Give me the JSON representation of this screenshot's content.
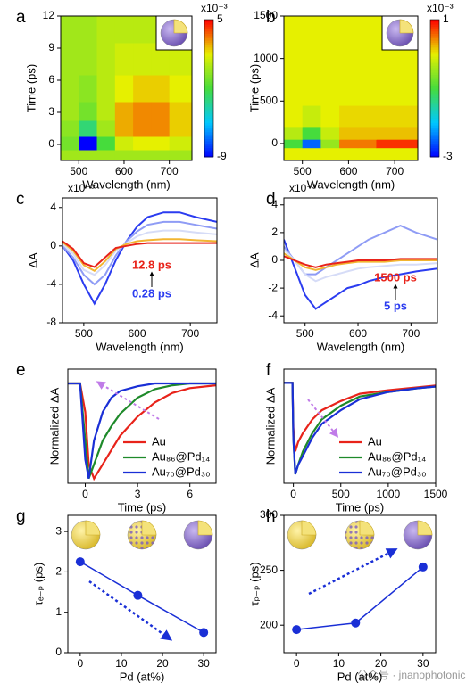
{
  "chart_data": [
    {
      "type": "heatmap",
      "label": "a",
      "xlabel": "Wavelength (nm)",
      "ylabel": "Time (ps)",
      "xlim": [
        460,
        750
      ],
      "ylim": [
        -1.5,
        12
      ],
      "xticks": [
        500,
        600,
        700
      ],
      "yticks": [
        0,
        3,
        6,
        9,
        12
      ],
      "x": [
        480,
        520,
        560,
        600,
        640,
        680,
        720
      ],
      "y": [
        -1,
        0,
        1.5,
        3,
        5,
        8,
        11
      ],
      "z": [
        [
          0,
          0,
          0,
          0,
          0,
          0,
          0
        ],
        [
          -1,
          -9,
          -2,
          1,
          1.5,
          1.5,
          1
        ],
        [
          -0.5,
          -3,
          0,
          2.5,
          3,
          3,
          2
        ],
        [
          0,
          -1,
          0.5,
          2.5,
          3,
          3,
          2
        ],
        [
          0,
          -0.5,
          0.5,
          1.5,
          2,
          2,
          1.5
        ],
        [
          0,
          0,
          0.5,
          1,
          1,
          1,
          1
        ],
        [
          0,
          0,
          0.5,
          0.5,
          0.5,
          0.5,
          0.5
        ]
      ],
      "zlim": [
        -9,
        5
      ],
      "zticks": [
        -9,
        5
      ],
      "zunit": "x10⁻³"
    },
    {
      "type": "heatmap",
      "label": "b",
      "xlabel": "Wavelength (nm)",
      "ylabel": "Time (ps)",
      "xlim": [
        460,
        750
      ],
      "ylim": [
        -200,
        1500
      ],
      "xticks": [
        500,
        600,
        700
      ],
      "yticks": [
        0,
        500,
        1000,
        1500
      ],
      "x": [
        480,
        520,
        560,
        600,
        640,
        680,
        720
      ],
      "y": [
        -100,
        0,
        100,
        300,
        600,
        900,
        1300
      ],
      "z": [
        [
          0,
          0,
          0,
          0,
          0,
          0,
          0
        ],
        [
          -1,
          -2.5,
          -0.5,
          0.5,
          0.5,
          0.8,
          0.8
        ],
        [
          -0.3,
          -1,
          -0.2,
          0.2,
          0.2,
          0.2,
          0.2
        ],
        [
          0,
          -0.2,
          0,
          0.1,
          0.1,
          0.1,
          0.1
        ],
        [
          0,
          0,
          0,
          0,
          0,
          0,
          0
        ],
        [
          0,
          0,
          0,
          0,
          0,
          0,
          0
        ],
        [
          0,
          0,
          0,
          0,
          0,
          0,
          0
        ]
      ],
      "zlim": [
        -3,
        1
      ],
      "zticks": [
        -3,
        1
      ],
      "zunit": "x10⁻³"
    },
    {
      "type": "line",
      "label": "c",
      "xlabel": "Wavelength (nm)",
      "ylabel": "ΔA",
      "yunit": "x10⁻³",
      "xlim": [
        460,
        750
      ],
      "ylim": [
        -8,
        5
      ],
      "xticks": [
        500,
        600,
        700
      ],
      "yticks": [
        -8,
        -4,
        0,
        4
      ],
      "x": [
        460,
        480,
        500,
        520,
        540,
        560,
        580,
        600,
        620,
        650,
        680,
        710,
        750
      ],
      "series": [
        {
          "color": "#2b3cf0",
          "values": [
            0,
            -1.5,
            -4,
            -6,
            -4,
            -1.5,
            0.5,
            2,
            3,
            3.5,
            3.5,
            3,
            2.5
          ]
        },
        {
          "color": "#8f9cf5",
          "values": [
            0,
            -1.2,
            -3,
            -4,
            -3,
            -1,
            0.5,
            1.5,
            2.2,
            2.5,
            2.5,
            2.2,
            1.8
          ]
        },
        {
          "color": "#d6dcf7",
          "values": [
            0.2,
            -0.8,
            -2.5,
            -3,
            -2,
            -0.5,
            0.3,
            1,
            1.4,
            1.6,
            1.6,
            1.4,
            1.2
          ]
        },
        {
          "color": "#f2b531",
          "values": [
            0.4,
            -0.5,
            -2,
            -2.6,
            -1.6,
            -0.3,
            0.2,
            0.5,
            0.6,
            0.7,
            0.7,
            0.6,
            0.5
          ]
        },
        {
          "color": "#e8231a",
          "values": [
            0.5,
            -0.3,
            -1.8,
            -2.2,
            -1.2,
            -0.2,
            0,
            0.2,
            0.3,
            0.3,
            0.3,
            0.3,
            0.3
          ]
        }
      ],
      "annotations": [
        {
          "text": "12.8 ps",
          "color": "#e8231a"
        },
        {
          "text": "0.28 ps",
          "color": "#2b3cf0"
        }
      ]
    },
    {
      "type": "line",
      "label": "d",
      "xlabel": "Wavelength (nm)",
      "ylabel": "ΔA",
      "yunit": "x10⁻³",
      "xlim": [
        460,
        750
      ],
      "ylim": [
        -4.5,
        4.5
      ],
      "xticks": [
        500,
        600,
        700
      ],
      "yticks": [
        -4,
        -2,
        0,
        2,
        4
      ],
      "x": [
        460,
        480,
        500,
        520,
        540,
        560,
        580,
        600,
        620,
        650,
        680,
        710,
        750
      ],
      "series": [
        {
          "color": "#2b3cf0",
          "values": [
            1.5,
            -0.5,
            -2.5,
            -3.5,
            -3,
            -2.5,
            -2,
            -1.8,
            -1.5,
            -1.2,
            -1,
            -0.8,
            -0.6
          ]
        },
        {
          "color": "#8f9cf5",
          "values": [
            1,
            0,
            -1,
            -1,
            -0.5,
            0,
            0.5,
            1,
            1.5,
            2,
            2.5,
            2,
            1.5
          ]
        },
        {
          "color": "#d6dcf7",
          "values": [
            0.8,
            0,
            -1,
            -1.5,
            -1.2,
            -1,
            -0.8,
            -0.6,
            -0.5,
            -0.4,
            -0.3,
            -0.3,
            -0.2
          ]
        },
        {
          "color": "#f2b531",
          "values": [
            0.5,
            0,
            -0.5,
            -0.7,
            -0.5,
            -0.3,
            -0.2,
            -0.1,
            -0.1,
            -0.1,
            0,
            0,
            0
          ]
        },
        {
          "color": "#e8231a",
          "values": [
            0.3,
            0,
            -0.3,
            -0.5,
            -0.3,
            -0.2,
            -0.1,
            0,
            0,
            0,
            0.1,
            0.1,
            0.1
          ]
        }
      ],
      "annotations": [
        {
          "text": "1500 ps",
          "color": "#e8231a"
        },
        {
          "text": "5 ps",
          "color": "#2b3cf0"
        }
      ]
    },
    {
      "type": "kinetic",
      "label": "e",
      "xlabel": "Time (ps)",
      "ylabel": "Normalized ΔA",
      "xlim": [
        -1,
        7.5
      ],
      "ylim": [
        -1.05,
        0.15
      ],
      "xticks": [
        0,
        3,
        6
      ],
      "x": [
        -1,
        -0.3,
        0,
        0.2,
        0.5,
        1,
        1.5,
        2,
        3,
        4,
        5,
        6,
        7.5
      ],
      "series": [
        {
          "name": "Au",
          "color": "#e8231a",
          "values": [
            0,
            0,
            -0.3,
            -0.85,
            -1,
            -0.85,
            -0.7,
            -0.55,
            -0.35,
            -0.2,
            -0.1,
            -0.05,
            -0.02
          ]
        },
        {
          "name": "Au₈₆@Pd₁₄",
          "color": "#1e8a2a",
          "values": [
            0,
            0,
            -0.6,
            -1,
            -0.85,
            -0.6,
            -0.45,
            -0.32,
            -0.15,
            -0.06,
            -0.02,
            0,
            0
          ]
        },
        {
          "name": "Au₇₀@Pd₃₀",
          "color": "#1a2fd6",
          "values": [
            0,
            0,
            -0.8,
            -1,
            -0.6,
            -0.3,
            -0.15,
            -0.08,
            -0.03,
            0,
            0,
            0,
            0
          ]
        }
      ]
    },
    {
      "type": "kinetic",
      "label": "f",
      "xlabel": "Time (ps)",
      "ylabel": "Normalized ΔA",
      "xlim": [
        -100,
        1500
      ],
      "ylim": [
        -1.1,
        0.15
      ],
      "xticks": [
        0,
        500,
        1000,
        1500
      ],
      "x": [
        -100,
        -10,
        0,
        20,
        50,
        100,
        200,
        300,
        500,
        700,
        1000,
        1300,
        1500
      ],
      "series": [
        {
          "name": "Au",
          "color": "#e8231a",
          "values": [
            0,
            0,
            -0.5,
            -0.75,
            -0.65,
            -0.55,
            -0.4,
            -0.3,
            -0.2,
            -0.12,
            -0.08,
            -0.05,
            -0.03
          ]
        },
        {
          "name": "Au₈₆@Pd₁₄",
          "color": "#1e8a2a",
          "values": [
            0,
            0,
            -0.6,
            -1,
            -0.9,
            -0.75,
            -0.55,
            -0.4,
            -0.25,
            -0.15,
            -0.1,
            -0.06,
            -0.04
          ]
        },
        {
          "name": "Au₇₀@Pd₃₀",
          "color": "#1a2fd6",
          "values": [
            0,
            0,
            -0.6,
            -1,
            -0.9,
            -0.8,
            -0.6,
            -0.45,
            -0.3,
            -0.18,
            -0.1,
            -0.06,
            -0.04
          ]
        }
      ]
    },
    {
      "type": "scatter",
      "label": "g",
      "xlabel": "Pd (at%)",
      "ylabel": "τₑ₋ₚ (ps)",
      "color": "#1a2fd6",
      "xlim": [
        -3,
        33
      ],
      "ylim": [
        0,
        3.4
      ],
      "xticks": [
        0,
        10,
        20,
        30
      ],
      "yticks": [
        0,
        1,
        2,
        3
      ],
      "x": [
        0,
        14,
        30
      ],
      "values": [
        2.25,
        1.42,
        0.5
      ]
    },
    {
      "type": "scatter",
      "label": "h",
      "xlabel": "Pd (at%)",
      "ylabel": "τₚ₋ₚ (ps)",
      "color": "#1a2fd6",
      "xlim": [
        -3,
        33
      ],
      "ylim": [
        175,
        300
      ],
      "xticks": [
        0,
        10,
        20,
        30
      ],
      "yticks": [
        200,
        250,
        300
      ],
      "x": [
        0,
        14,
        30
      ],
      "values": [
        196,
        202,
        253
      ]
    }
  ],
  "watermark": "公众号 · jnanophotonics"
}
